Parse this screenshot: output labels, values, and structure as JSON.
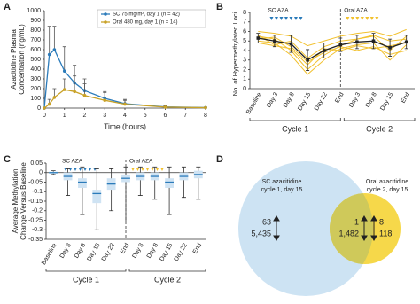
{
  "chart_data": [
    {
      "type": "line",
      "panel_label": "A",
      "xlabel": "Time (hours)",
      "ylabel": [
        "Azacitidine Plasma",
        "Concentration (ng/mL)"
      ],
      "xlim": [
        0,
        8
      ],
      "xticks": [
        0,
        1,
        2,
        3,
        4,
        5,
        6,
        7,
        8
      ],
      "ylim": [
        0,
        1000
      ],
      "yticks": [
        0,
        100,
        200,
        300,
        400,
        500,
        600,
        700,
        800,
        900,
        1000
      ],
      "legend": "top-right",
      "series": [
        {
          "name": "SC 75 mg/m², day 1 (n = 42)",
          "color": "#2b7bba",
          "x": [
            0,
            0.25,
            0.5,
            1,
            1.5,
            2,
            3,
            4,
            6,
            8
          ],
          "values": [
            0,
            550,
            600,
            380,
            260,
            180,
            100,
            45,
            12,
            5
          ],
          "errors": [
            0,
            290,
            240,
            250,
            180,
            120,
            70,
            35,
            10,
            5
          ]
        },
        {
          "name": "Oral 480 mg, day 1 (n = 14)",
          "color": "#c9a227",
          "x": [
            0,
            0.25,
            0.5,
            1,
            1.5,
            2,
            3,
            4,
            6,
            8
          ],
          "values": [
            0,
            40,
            110,
            190,
            170,
            130,
            80,
            40,
            10,
            4
          ],
          "errors": [
            0,
            50,
            90,
            110,
            160,
            120,
            80,
            50,
            12,
            5
          ]
        }
      ]
    },
    {
      "type": "line",
      "panel_label": "B",
      "ylabel": "No. of Hypermethylated Loci",
      "categories": [
        "Baseline",
        "Day 3",
        "Day 8",
        "Day 15",
        "Day 22",
        "End",
        "Day 3",
        "Day 8",
        "Day 15",
        "End"
      ],
      "ylim": [
        0,
        8
      ],
      "yticks": [
        0,
        1,
        2,
        3,
        4,
        5,
        6,
        7,
        8
      ],
      "treatments": [
        "SC AZA",
        "Oral AZA"
      ],
      "cycles": [
        "Cycle 1",
        "Cycle 2"
      ],
      "trace_color": "#f2c12e",
      "traces": [
        [
          5.5,
          5.2,
          4.0,
          2.0,
          3.5,
          4.5,
          5.2,
          5.5,
          4.0,
          5.5
        ],
        [
          5.0,
          4.8,
          3.5,
          1.5,
          3.0,
          4.2,
          4.6,
          4.8,
          3.0,
          4.6
        ],
        [
          6.0,
          5.8,
          5.5,
          4.5,
          5.0,
          5.5,
          5.8,
          6.0,
          5.5,
          6.2
        ],
        [
          4.8,
          4.5,
          4.2,
          2.5,
          4.2,
          4.0,
          4.5,
          4.2,
          4.5,
          4.8
        ],
        [
          5.6,
          4.6,
          5.0,
          3.2,
          4.4,
          5.0,
          5.2,
          5.6,
          5.0,
          5.2
        ],
        [
          5.2,
          5.4,
          4.4,
          2.8,
          3.8,
          4.4,
          4.0,
          4.4,
          3.6,
          4.0
        ]
      ],
      "series": [
        {
          "color": "#222222",
          "values": [
            5.3,
            5.0,
            4.7,
            3.0,
            4.0,
            4.6,
            4.9,
            5.0,
            4.3,
            4.9
          ],
          "errors": [
            0.5,
            0.6,
            0.9,
            1.1,
            0.8,
            0.7,
            0.7,
            0.8,
            0.9,
            0.7
          ]
        }
      ]
    },
    {
      "type": "box",
      "panel_label": "C",
      "ylabel": [
        "Average Methylation",
        "Change Versus Baseline"
      ],
      "categories": [
        "Baseline",
        "Day 3",
        "Day 8",
        "Day 15",
        "Day 22",
        "End",
        "Day 3",
        "Day 8",
        "Day 15",
        "Day 22",
        "End"
      ],
      "ylim": [
        -0.35,
        0.05
      ],
      "yticks": [
        0.05,
        0,
        -0.05,
        -0.1,
        -0.15,
        -0.2,
        -0.25,
        -0.3,
        -0.35
      ],
      "treatments": [
        "SC AZA",
        "Oral AZA"
      ],
      "cycles": [
        "Cycle 1",
        "Cycle 2"
      ],
      "color": "#cfe3f3",
      "median_color": "#2b7bba",
      "median": [
        0,
        -0.02,
        -0.05,
        -0.11,
        -0.06,
        -0.03,
        -0.02,
        -0.02,
        -0.05,
        -0.02,
        -0.01
      ],
      "q1": [
        -0.005,
        -0.04,
        -0.08,
        -0.16,
        -0.09,
        -0.05,
        -0.04,
        -0.04,
        -0.08,
        -0.04,
        -0.03
      ],
      "q3": [
        0.005,
        0,
        -0.03,
        -0.09,
        -0.03,
        -0.01,
        0,
        0,
        -0.03,
        0,
        0.01
      ],
      "low": [
        -0.01,
        -0.12,
        -0.22,
        -0.3,
        -0.2,
        -0.26,
        -0.12,
        -0.14,
        -0.22,
        -0.13,
        -0.14
      ],
      "high": [
        0.01,
        0.02,
        0.03,
        0.02,
        0.02,
        0.03,
        0.03,
        0.03,
        0.03,
        0.03,
        0.03
      ]
    }
  ],
  "venn": {
    "panel_label": "D",
    "sc_label": [
      "SC azacitidine",
      "cycle 1, day 15"
    ],
    "oral_label": [
      "Oral azacitidine",
      "cycle 2, day 15"
    ],
    "sc_only": [
      "63",
      "5,435"
    ],
    "overlap": [
      "1",
      "1,482"
    ],
    "oral_only": [
      "8",
      "118"
    ]
  }
}
